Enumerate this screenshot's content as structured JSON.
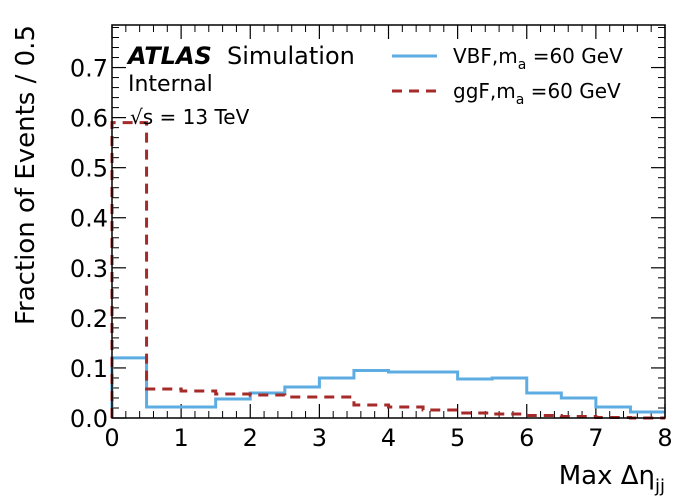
{
  "chart_data": {
    "type": "line",
    "style": "step-histogram",
    "xlabel_main": "Max Δη",
    "xlabel_sub": "jj",
    "ylabel": "Fraction of Events / 0.5",
    "xlim": [
      0,
      8
    ],
    "ylim": [
      0,
      0.785
    ],
    "x_ticks": [
      0,
      1,
      2,
      3,
      4,
      5,
      6,
      7,
      8
    ],
    "y_ticks": [
      0.0,
      0.1,
      0.2,
      0.3,
      0.4,
      0.5,
      0.6,
      0.7
    ],
    "y_tick_labels": [
      "0.0",
      "0.1",
      "0.2",
      "0.3",
      "0.4",
      "0.5",
      "0.6",
      "0.7"
    ],
    "bin_edges": [
      0,
      0.5,
      1.0,
      1.5,
      2.0,
      2.5,
      3.0,
      3.5,
      4.0,
      4.5,
      5.0,
      5.5,
      6.0,
      6.5,
      7.0,
      7.5,
      8.0
    ],
    "series": [
      {
        "name": "VBF,m",
        "name_sub": "a",
        "name_suffix": " =60 GeV",
        "color": "#5DADE2",
        "dash": "solid",
        "values": [
          0.12,
          0.022,
          0.022,
          0.038,
          0.05,
          0.062,
          0.08,
          0.095,
          0.092,
          0.092,
          0.078,
          0.08,
          0.05,
          0.04,
          0.022,
          0.012
        ]
      },
      {
        "name": "ggF,m",
        "name_sub": "a",
        "name_suffix": " =60 GeV",
        "color": "#A52A2A",
        "dash": "dashed",
        "values": [
          0.59,
          0.058,
          0.054,
          0.048,
          0.046,
          0.042,
          0.042,
          0.026,
          0.022,
          0.016,
          0.01,
          0.008,
          0.005,
          0.003,
          0.001,
          0.0
        ]
      }
    ],
    "legend_position": "top-right"
  },
  "labels": {
    "atlas": "ATLAS",
    "simulation": "Simulation",
    "internal": "Internal",
    "energy_sqrt": "√s",
    "energy_value": " = 13 TeV"
  }
}
